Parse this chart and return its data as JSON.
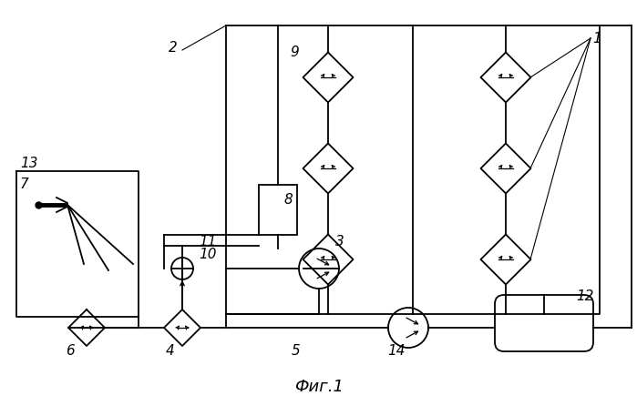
{
  "title": "Фиг.1",
  "bg_color": "#ffffff",
  "line_color": "#000000",
  "linewidth": 1.3,
  "figsize": [
    6.99,
    4.57
  ],
  "dpi": 100
}
